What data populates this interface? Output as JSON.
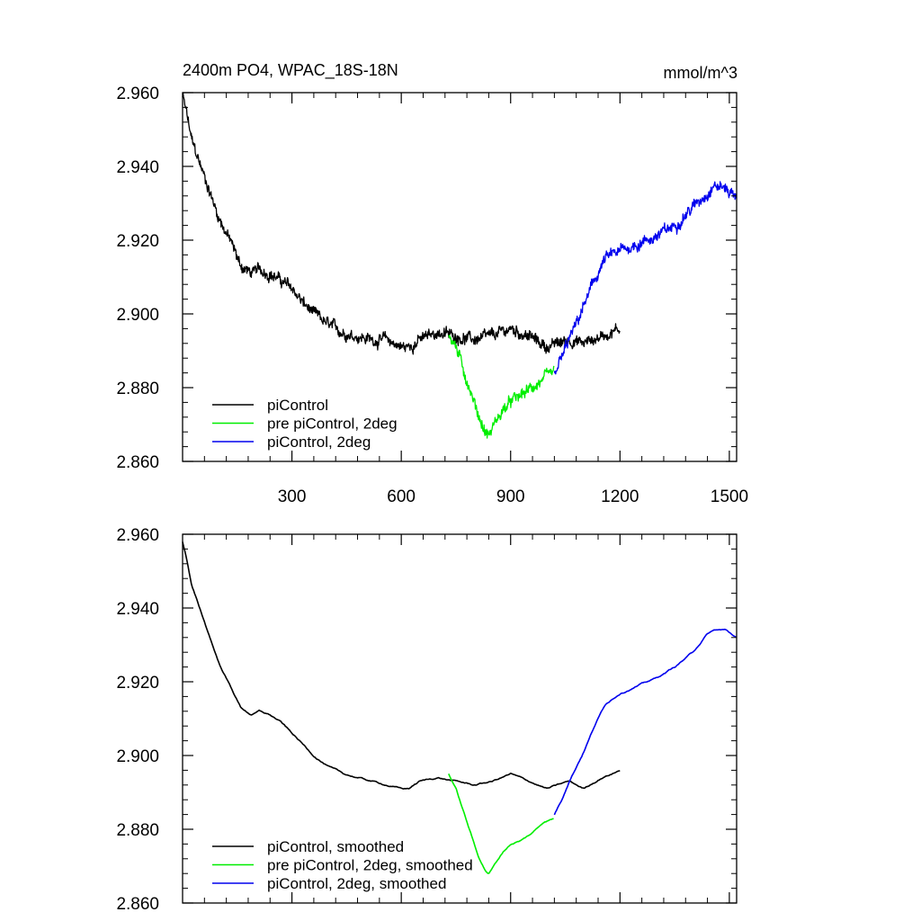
{
  "chart_data": [
    {
      "type": "line",
      "title": "2400m PO4, WPAC_18S-18N",
      "units": "mmol/m^3",
      "xlim": [
        0,
        1520
      ],
      "ylim": [
        2.86,
        2.96
      ],
      "x_ticks": [
        300,
        600,
        900,
        1200,
        1500
      ],
      "x_tick_labels": [
        "300",
        "600",
        "900",
        "1200",
        "1500"
      ],
      "y_ticks": [
        2.86,
        2.88,
        2.9,
        2.92,
        2.94,
        2.96
      ],
      "y_tick_labels": [
        "2.860",
        "2.880",
        "2.900",
        "2.920",
        "2.940",
        "2.960"
      ],
      "legend_position": "bottom-left",
      "series": [
        {
          "name": "piControl",
          "color": "#000000",
          "noisy": true,
          "x": [
            0,
            10,
            25,
            50,
            75,
            100,
            130,
            160,
            190,
            210,
            240,
            270,
            300,
            330,
            360,
            400,
            440,
            480,
            520,
            560,
            600,
            620,
            650,
            700,
            750,
            800,
            850,
            900,
            950,
            1000,
            1030,
            1060,
            1100,
            1150,
            1200
          ],
          "y": [
            2.959,
            2.955,
            2.947,
            2.94,
            2.933,
            2.926,
            2.92,
            2.913,
            2.911,
            2.912,
            2.911,
            2.909,
            2.907,
            2.903,
            2.9,
            2.897,
            2.895,
            2.894,
            2.893,
            2.893,
            2.891,
            2.891,
            2.893,
            2.895,
            2.894,
            2.893,
            2.894,
            2.896,
            2.894,
            2.891,
            2.892,
            2.893,
            2.892,
            2.894,
            2.896
          ]
        },
        {
          "name": "pre piControl, 2deg",
          "color": "#00ee00",
          "noisy": true,
          "x": [
            730,
            750,
            770,
            790,
            810,
            830,
            840,
            860,
            880,
            900,
            930,
            960,
            990,
            1020
          ],
          "y": [
            2.895,
            2.891,
            2.885,
            2.879,
            2.873,
            2.868,
            2.867,
            2.871,
            2.874,
            2.876,
            2.878,
            2.88,
            2.882,
            2.884
          ]
        },
        {
          "name": "piControl, 2deg",
          "color": "#0000ee",
          "noisy": true,
          "x": [
            1020,
            1040,
            1060,
            1080,
            1100,
            1130,
            1160,
            1200,
            1250,
            1300,
            1350,
            1400,
            1440,
            1460,
            1490,
            1520
          ],
          "y": [
            2.884,
            2.888,
            2.893,
            2.897,
            2.902,
            2.909,
            2.915,
            2.917,
            2.919,
            2.921,
            2.924,
            2.929,
            2.933,
            2.935,
            2.934,
            2.932
          ]
        }
      ]
    },
    {
      "type": "line",
      "xlim": [
        0,
        1520
      ],
      "ylim": [
        2.86,
        2.96
      ],
      "y_ticks": [
        2.86,
        2.88,
        2.9,
        2.92,
        2.94,
        2.96
      ],
      "y_tick_labels": [
        "2.860",
        "2.880",
        "2.900",
        "2.920",
        "2.940",
        "2.960"
      ],
      "legend_position": "bottom-left",
      "series": [
        {
          "name": "piControl, smoothed",
          "color": "#000000",
          "noisy": false,
          "x": [
            0,
            10,
            25,
            50,
            75,
            100,
            130,
            160,
            190,
            210,
            240,
            270,
            300,
            330,
            360,
            400,
            440,
            480,
            520,
            560,
            600,
            620,
            650,
            700,
            750,
            800,
            850,
            900,
            950,
            1000,
            1030,
            1060,
            1100,
            1150,
            1200
          ],
          "y": [
            2.958,
            2.954,
            2.946,
            2.939,
            2.932,
            2.925,
            2.919,
            2.913,
            2.911,
            2.912,
            2.911,
            2.909,
            2.906,
            2.903,
            2.9,
            2.897,
            2.895,
            2.894,
            2.893,
            2.892,
            2.891,
            2.891,
            2.893,
            2.894,
            2.893,
            2.892,
            2.893,
            2.895,
            2.893,
            2.891,
            2.892,
            2.893,
            2.891,
            2.894,
            2.896
          ]
        },
        {
          "name": "pre piControl, 2deg, smoothed",
          "color": "#00ee00",
          "noisy": false,
          "x": [
            730,
            750,
            770,
            790,
            810,
            830,
            840,
            860,
            880,
            900,
            930,
            960,
            990,
            1020
          ],
          "y": [
            2.895,
            2.891,
            2.885,
            2.879,
            2.873,
            2.869,
            2.868,
            2.871,
            2.874,
            2.876,
            2.877,
            2.879,
            2.882,
            2.883
          ]
        },
        {
          "name": "piControl, 2deg, smoothed",
          "color": "#0000ee",
          "noisy": false,
          "x": [
            1020,
            1040,
            1060,
            1080,
            1100,
            1130,
            1160,
            1200,
            1250,
            1300,
            1350,
            1400,
            1440,
            1460,
            1490,
            1520
          ],
          "y": [
            2.884,
            2.888,
            2.893,
            2.897,
            2.901,
            2.908,
            2.914,
            2.917,
            2.919,
            2.921,
            2.924,
            2.928,
            2.933,
            2.934,
            2.934,
            2.932
          ]
        }
      ]
    }
  ]
}
